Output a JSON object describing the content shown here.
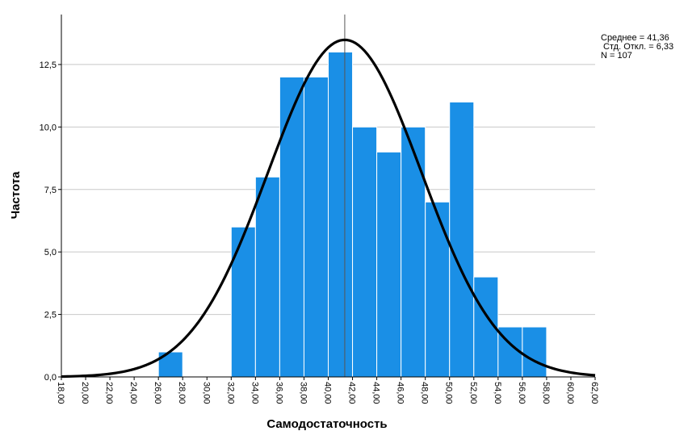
{
  "chart_data": {
    "type": "bar",
    "subtype": "histogram",
    "xlabel": "Самодостаточность",
    "ylabel": "Частота",
    "xlim": [
      18,
      62
    ],
    "ylim": [
      0,
      14.5
    ],
    "bin_width": 2,
    "x_ticks": [
      "18,00",
      "20,00",
      "22,00",
      "24,00",
      "26,00",
      "28,00",
      "30,00",
      "32,00",
      "34,00",
      "36,00",
      "38,00",
      "40,00",
      "42,00",
      "44,00",
      "46,00",
      "48,00",
      "50,00",
      "52,00",
      "54,00",
      "56,00",
      "58,00",
      "60,00",
      "62,00"
    ],
    "x_tick_values": [
      18,
      20,
      22,
      24,
      26,
      28,
      30,
      32,
      34,
      36,
      38,
      40,
      42,
      44,
      46,
      48,
      50,
      52,
      54,
      56,
      58,
      60,
      62
    ],
    "y_ticks": [
      "0,0",
      "2,5",
      "5,0",
      "7,5",
      "10,0",
      "12,5"
    ],
    "y_tick_values": [
      0,
      2.5,
      5,
      7.5,
      10,
      12.5
    ],
    "bins": [
      {
        "start": 26,
        "end": 28,
        "count": 1
      },
      {
        "start": 32,
        "end": 34,
        "count": 6
      },
      {
        "start": 34,
        "end": 36,
        "count": 8
      },
      {
        "start": 36,
        "end": 38,
        "count": 12
      },
      {
        "start": 38,
        "end": 40,
        "count": 12
      },
      {
        "start": 40,
        "end": 42,
        "count": 13
      },
      {
        "start": 42,
        "end": 44,
        "count": 10
      },
      {
        "start": 44,
        "end": 46,
        "count": 9
      },
      {
        "start": 46,
        "end": 48,
        "count": 10
      },
      {
        "start": 48,
        "end": 50,
        "count": 7
      },
      {
        "start": 50,
        "end": 52,
        "count": 11
      },
      {
        "start": 52,
        "end": 54,
        "count": 4
      },
      {
        "start": 54,
        "end": 56,
        "count": 2
      },
      {
        "start": 56,
        "end": 58,
        "count": 2
      }
    ],
    "normal_curve": {
      "mean": 41.36,
      "sd": 6.33,
      "n": 107
    },
    "mean_line": 41.36,
    "stats_lines": [
      "Среднее = 41,36",
      " Стд. Откл. = 6,33",
      "N = 107"
    ],
    "grid": true,
    "colors": {
      "bar": "#1a8fe6",
      "bar_edge": "#ffffff",
      "curve": "#000000",
      "grid": "#c8c8c8",
      "axis": "#000000",
      "mean_line": "#555555"
    }
  }
}
